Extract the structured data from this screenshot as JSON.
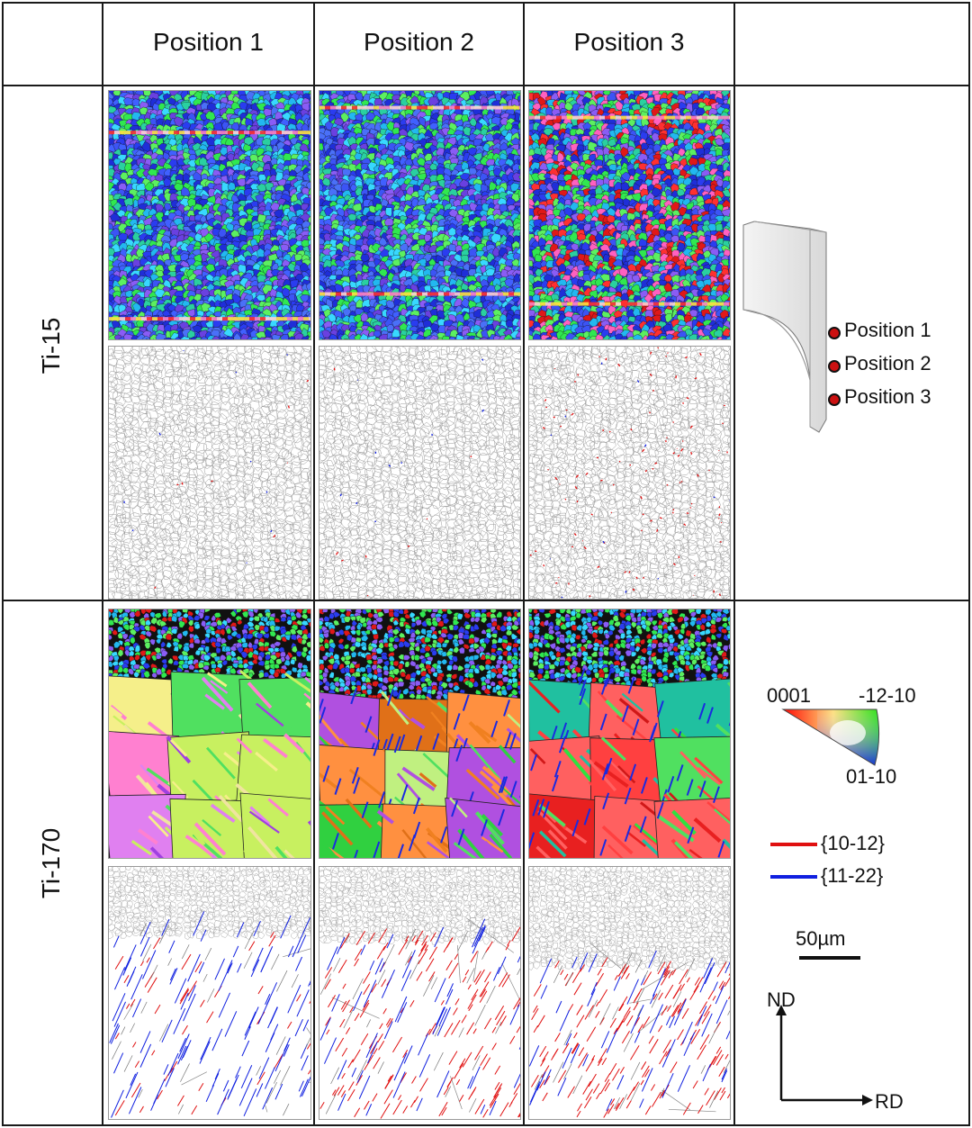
{
  "table": {
    "columns": [
      "Position 1",
      "Position 2",
      "Position 3"
    ],
    "rows": [
      "Ti-15",
      "Ti-170"
    ]
  },
  "schematic": {
    "positions": [
      "Position 1",
      "Position 2",
      "Position 3"
    ],
    "marker_color": "#cc1111"
  },
  "ipf_legend": {
    "label_0001": "0001",
    "label_12_10": "-12-10",
    "label_01_10": "01-10"
  },
  "twin_legend": {
    "twin_1012": "{10-12}",
    "twin_1122": "{11-22}",
    "color_1012": "#e01010",
    "color_1122": "#1020e0"
  },
  "scale_bar": {
    "label": "50µm"
  },
  "axes": {
    "nd": "ND",
    "rd": "RD"
  },
  "colors": {
    "grid_line": "#1a1a1a",
    "grain_boundary": "#9a9a9a"
  }
}
